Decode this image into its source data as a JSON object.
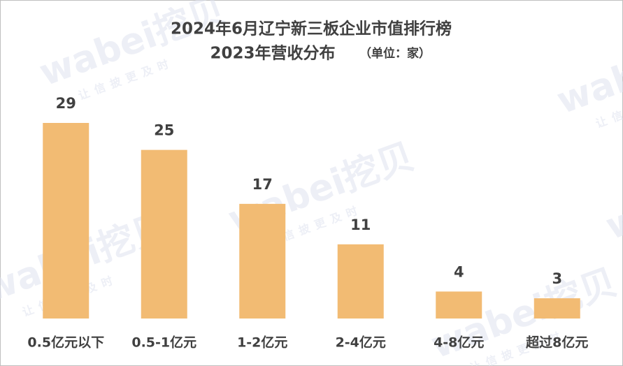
{
  "chart_data": {
    "type": "bar",
    "title": "2024年6月辽宁新三板企业市值排行榜",
    "subtitle": "2023年营收分布",
    "unit_note": "（单位：家）",
    "watermark": "wabei挖贝",
    "watermark_slogan": "让信披更及时",
    "categories": [
      "0.5亿元以下",
      "0.5-1亿元",
      "1-2亿元",
      "2-4亿元",
      "4-8亿元",
      "超过8亿元"
    ],
    "values": [
      29,
      25,
      17,
      11,
      4,
      3
    ],
    "color": "#f2bb73"
  }
}
